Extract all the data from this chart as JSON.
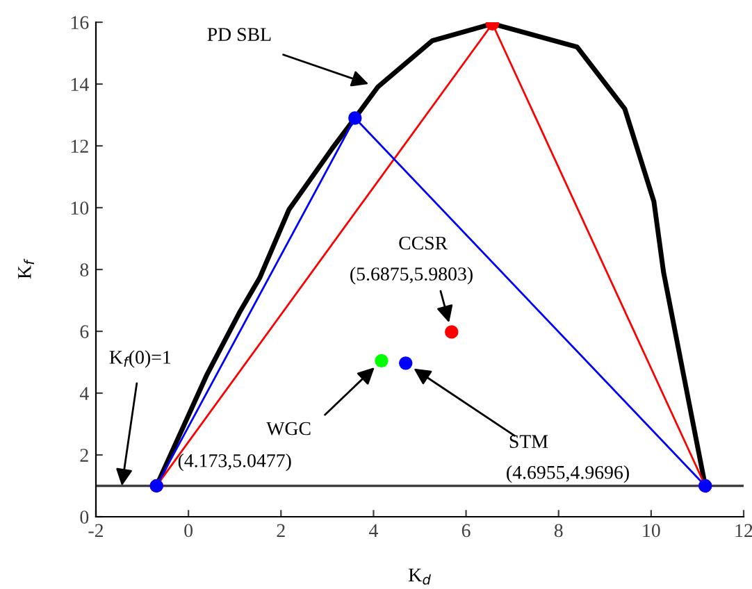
{
  "chart_data": {
    "type": "line",
    "xlabel": "K$_{d}$",
    "ylabel": "K$_{f}$",
    "xlim": [
      -2,
      12
    ],
    "ylim": [
      0,
      16
    ],
    "xticks": [
      -2,
      0,
      2,
      4,
      6,
      8,
      10,
      12
    ],
    "yticks": [
      0,
      2,
      4,
      6,
      8,
      10,
      12,
      14,
      16
    ],
    "grid": false,
    "legend": false,
    "series": [
      {
        "color": "#000000",
        "marker": "none",
        "x": [
          -0.69,
          0.4,
          1.1,
          1.54,
          2.17,
          3.1,
          3.6,
          4.09,
          5.27,
          6.57,
          8.4,
          9.43,
          10.06,
          10.27,
          10.7,
          11.17
        ],
        "values": [
          1.0,
          4.6,
          6.6,
          7.73,
          9.93,
          11.9,
          12.9,
          13.9,
          15.4,
          15.95,
          15.2,
          13.2,
          10.2,
          7.9,
          4.6,
          1.0
        ]
      },
      {
        "color": "#ff0000",
        "marker": "circle",
        "x": [
          -0.69,
          6.57,
          11.17
        ],
        "values": [
          1.0,
          15.95,
          1.0
        ]
      },
      {
        "color": "#0000ff",
        "marker": "circle",
        "x": [
          -0.69,
          3.6,
          11.17
        ],
        "values": [
          1.0,
          12.9,
          1.0
        ]
      },
      {
        "type": "scatter",
        "color": "#ff0000",
        "marker": "circle",
        "x": [
          5.6875
        ],
        "values": [
          5.9803
        ]
      },
      {
        "type": "scatter",
        "color": "#00ff00",
        "marker": "circle",
        "x": [
          4.173
        ],
        "values": [
          5.0477
        ]
      },
      {
        "type": "scatter",
        "color": "#0000ff",
        "marker": "circle",
        "x": [
          4.6955
        ],
        "values": [
          4.9696
        ]
      }
    ],
    "ref_lines": [
      {
        "axis": "y",
        "value": 1,
        "color": "#404040",
        "label": "K$_{f}$(0)=1"
      }
    ],
    "annotations": [
      {
        "text": "PD SBL",
        "x": 4.09,
        "y": 13.9
      },
      "CCSR",
      {
        "text": "(5.6875,5.9803)",
        "x": 5.6875,
        "y": 5.9803
      },
      {
        "text": "WGC",
        "x": 4.173,
        "y": 5.0477
      },
      "(4.173,5.0477)",
      {
        "text": "STM",
        "x": 4.6955,
        "y": 4.9696
      },
      "(4.6955,4.9696)"
    ]
  }
}
